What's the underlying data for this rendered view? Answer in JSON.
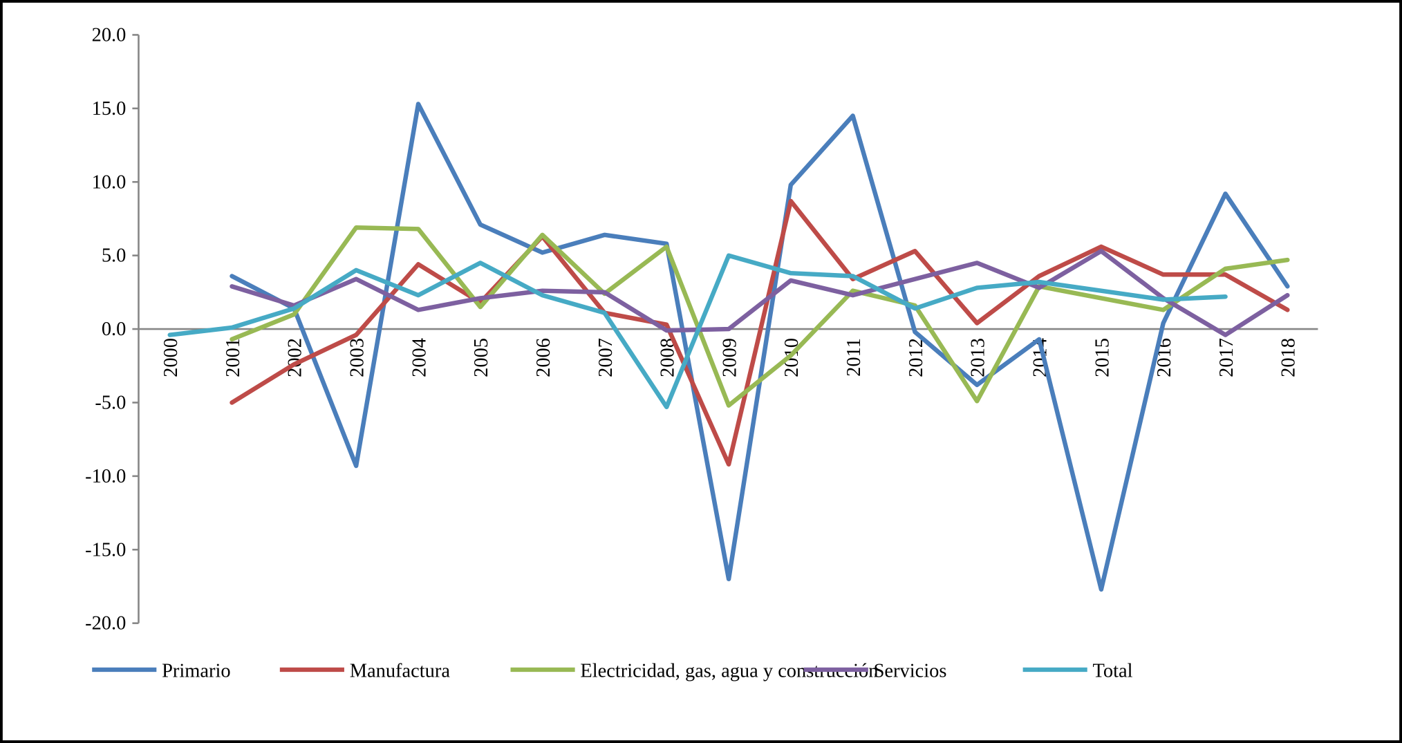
{
  "chart_data": {
    "type": "line",
    "title": "",
    "xlabel": "",
    "ylabel": "",
    "ylim": [
      -20,
      20
    ],
    "yticks": [
      "20.0",
      "15.0",
      "10.0",
      "5.0",
      "0.0",
      "-5.0",
      "-10.0",
      "-15.0",
      "-20.0"
    ],
    "ytick_values": [
      20,
      15,
      10,
      5,
      0,
      -5,
      -10,
      -15,
      -20
    ],
    "categories": [
      "2000",
      "2001",
      "2002",
      "2003",
      "2004",
      "2005",
      "2006",
      "2007",
      "2008",
      "2009",
      "2010",
      "2011",
      "2012",
      "2013",
      "2014",
      "2015",
      "2016",
      "2017",
      "2018"
    ],
    "grid": false,
    "legend_position": "bottom",
    "series": [
      {
        "name": "Primario",
        "color": "#4a7ebb",
        "values": [
          null,
          3.6,
          1.4,
          -9.3,
          15.3,
          7.1,
          5.2,
          6.4,
          5.8,
          -17.0,
          9.8,
          14.5,
          -0.2,
          -3.8,
          -0.7,
          -17.7,
          0.4,
          9.2,
          2.9
        ]
      },
      {
        "name": "Manufactura",
        "color": "#be4b48",
        "values": [
          null,
          -5.0,
          -2.4,
          -0.4,
          4.4,
          1.8,
          6.3,
          1.1,
          0.3,
          -9.2,
          8.7,
          3.4,
          5.3,
          0.4,
          3.6,
          5.6,
          3.7,
          3.7,
          1.3
        ]
      },
      {
        "name": "Electricidad, gas, agua y construcción",
        "color": "#98b954",
        "values": [
          null,
          -0.7,
          1.0,
          6.9,
          6.8,
          1.5,
          6.4,
          2.4,
          5.6,
          -5.2,
          -1.8,
          2.6,
          1.6,
          -4.9,
          2.9,
          2.1,
          1.3,
          4.1,
          4.7
        ]
      },
      {
        "name": "Servicios",
        "color": "#7d60a0",
        "values": [
          null,
          2.9,
          1.6,
          3.4,
          1.3,
          2.1,
          2.6,
          2.5,
          -0.1,
          0.0,
          3.3,
          2.3,
          3.4,
          4.5,
          2.8,
          5.3,
          2.1,
          -0.4,
          2.3
        ]
      },
      {
        "name": "Total",
        "color": "#46aac5",
        "values": [
          -0.4,
          0.1,
          1.4,
          4.0,
          2.3,
          4.5,
          2.3,
          1.1,
          -5.3,
          5.0,
          3.8,
          3.6,
          1.4,
          2.8,
          3.2,
          2.6,
          2.0,
          2.2,
          null
        ]
      }
    ]
  }
}
